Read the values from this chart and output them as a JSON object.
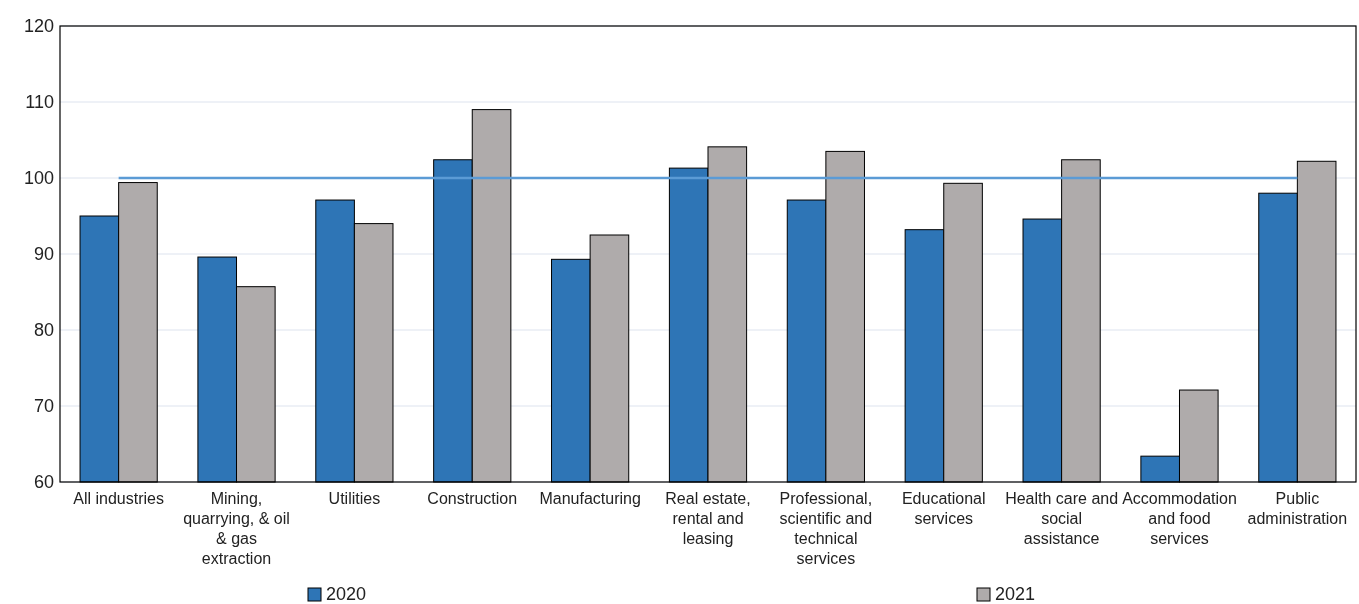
{
  "chart_data": {
    "type": "bar",
    "categories": [
      "All industries",
      "Mining, quarrying, & oil & gas extraction",
      "Utilities",
      "Construction",
      "Manufacturing",
      "Real estate, rental and leasing",
      "Professional, scientific and technical services",
      "Educational services",
      "Health care and social assistance",
      "Accommodation and food services",
      "Public administration"
    ],
    "series": [
      {
        "name": "2020",
        "color": "#2e75b6",
        "values": [
          95.0,
          89.6,
          97.1,
          102.4,
          89.3,
          101.3,
          97.1,
          93.2,
          94.6,
          63.4,
          98.0
        ]
      },
      {
        "name": "2021",
        "color": "#afabab",
        "values": [
          99.4,
          85.7,
          94.0,
          109.0,
          92.5,
          104.1,
          103.5,
          99.3,
          102.4,
          72.1,
          102.2
        ]
      }
    ],
    "ylim": [
      60,
      120
    ],
    "yticks": [
      60,
      70,
      80,
      90,
      100,
      110,
      120
    ],
    "grid": "y",
    "legend": "bottom",
    "ref_lines": [
      {
        "axis": "y",
        "value": 100,
        "color": "#5b9bd5"
      }
    ]
  }
}
